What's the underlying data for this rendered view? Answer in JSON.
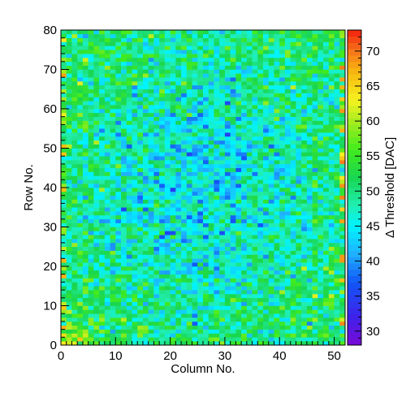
{
  "chart_data": {
    "type": "heatmap",
    "title": "",
    "xlabel": "Column No.",
    "ylabel": "Row No.",
    "zlabel": "Δ Threshold [DAC]",
    "xlim": [
      0,
      52
    ],
    "ylim": [
      0,
      80
    ],
    "zlim": [
      28,
      73
    ],
    "x_ticks": [
      0,
      10,
      20,
      30,
      40,
      50
    ],
    "y_ticks": [
      0,
      10,
      20,
      30,
      40,
      50,
      60,
      70,
      80
    ],
    "z_ticks": [
      30,
      35,
      40,
      45,
      50,
      55,
      60,
      65,
      70
    ],
    "n_columns": 52,
    "n_rows": 80,
    "palette_stops": [
      [
        28,
        "#7a0bd6"
      ],
      [
        32,
        "#3f21ea"
      ],
      [
        37,
        "#1157f6"
      ],
      [
        41,
        "#1fb0ff"
      ],
      [
        45,
        "#00f3ff"
      ],
      [
        48,
        "#21eeb0"
      ],
      [
        52,
        "#18d650"
      ],
      [
        56,
        "#43ec1d"
      ],
      [
        60,
        "#a6ec1f"
      ],
      [
        63,
        "#f6f220"
      ],
      [
        67,
        "#f7b70f"
      ],
      [
        70,
        "#f7771b"
      ],
      [
        73,
        "#f31f0e"
      ]
    ],
    "value_summary": {
      "typical_range": [
        36,
        56
      ],
      "center_mean": 45,
      "edge_mean": 51,
      "bottom_left_hot_region_mean": 57,
      "edge_column_outliers_max": 70
    }
  }
}
